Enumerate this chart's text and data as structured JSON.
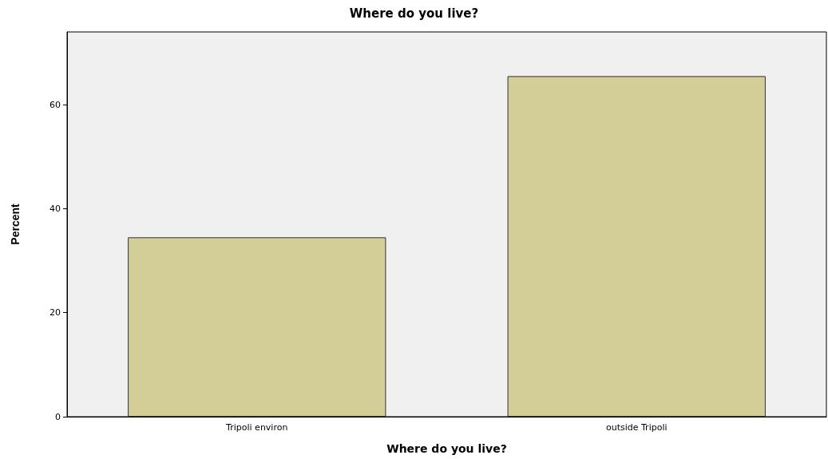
{
  "chart_data": {
    "type": "bar",
    "title": "Where do you live?",
    "xlabel": "Where do you live?",
    "ylabel": "Percent",
    "categories": [
      "Tripoli environ",
      "outside Tripoli"
    ],
    "values": [
      34.5,
      65.5
    ],
    "color": "#d3ce97",
    "ylim": [
      0,
      74
    ],
    "yticks": [
      0,
      20,
      40,
      60
    ],
    "grid": false
  }
}
